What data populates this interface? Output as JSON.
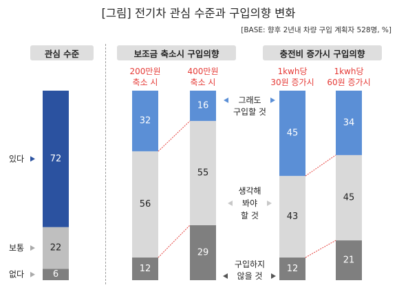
{
  "title": "[그림] 전기차 관심 수준과 구입의향 변화",
  "base_note": "[BASE: 향후 2년내 차량 구입 계획자 528명, %]",
  "sections": {
    "interest": "관심 수준",
    "subsidy": "보조금 축소시 구입의향",
    "charging": "충전비 증가시 구입의향"
  },
  "side_labels": {
    "have": "있다",
    "neutral": "보통",
    "none": "없다"
  },
  "middle_labels": {
    "still_buy": [
      "그래도",
      "구입할 것"
    ],
    "think": [
      "생각해",
      "봐야",
      "할 것"
    ],
    "not_buy": [
      "구입하지",
      "않을 것"
    ]
  },
  "colors": {
    "dark_blue": "#2b52a0",
    "light_blue": "#5b8fd6",
    "light_gray": "#d9d9d9",
    "mid_gray": "#bfbfbf",
    "dark_gray": "#7f7f7f",
    "red": "#e53935"
  },
  "chart_data": [
    {
      "type": "bar",
      "stacked": true,
      "title": "관심 수준",
      "categories": [
        ""
      ],
      "series": [
        {
          "name": "없다",
          "values": [
            6
          ]
        },
        {
          "name": "보통",
          "values": [
            22
          ]
        },
        {
          "name": "있다",
          "values": [
            72
          ]
        }
      ]
    },
    {
      "type": "bar",
      "stacked": true,
      "title": "보조금 축소시 구입의향",
      "categories": [
        "200만원 축소 시",
        "400만원 축소 시"
      ],
      "series": [
        {
          "name": "구입하지 않을 것",
          "values": [
            12,
            29
          ]
        },
        {
          "name": "생각해 봐야 할 것",
          "values": [
            56,
            55
          ]
        },
        {
          "name": "그래도 구입할 것",
          "values": [
            32,
            16
          ]
        }
      ]
    },
    {
      "type": "bar",
      "stacked": true,
      "title": "충전비 증가시 구입의향",
      "categories": [
        "1kwh당 30원 증가시",
        "1kwh당 60원 증가시"
      ],
      "series": [
        {
          "name": "구입하지 않을 것",
          "values": [
            12,
            21
          ]
        },
        {
          "name": "생각해 봐야 할 것",
          "values": [
            43,
            45
          ]
        },
        {
          "name": "그래도 구입할 것",
          "values": [
            45,
            34
          ]
        }
      ]
    }
  ]
}
